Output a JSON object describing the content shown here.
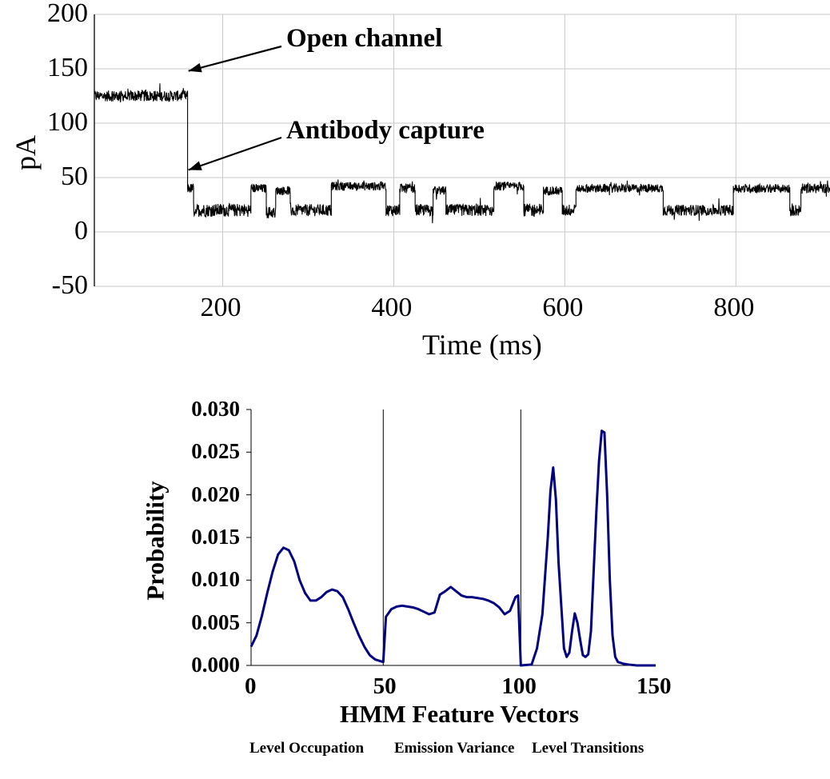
{
  "chart_data": [
    {
      "type": "line",
      "title": "",
      "xlabel": "Time (ms)",
      "ylabel": "pA",
      "xlim": [
        50,
        910
      ],
      "ylim": [
        -50,
        200
      ],
      "x_ticks": [
        200,
        400,
        600,
        800
      ],
      "y_ticks": [
        -50,
        0,
        50,
        100,
        150,
        200
      ],
      "x_tick_labels": [
        "200",
        "400",
        "600",
        "800"
      ],
      "y_tick_labels": [
        "-50",
        "0",
        "50",
        "100",
        "150",
        "200"
      ],
      "grid": true,
      "line_color": "#000000",
      "annotations": [
        {
          "text": "Open channel",
          "arrow_to": {
            "x": 160,
            "y": 148
          }
        },
        {
          "text": "Antibody capture",
          "arrow_to": {
            "x": 160,
            "y": 57
          }
        }
      ],
      "series": [
        {
          "segments": [
            {
              "x0": 50,
              "x1": 159,
              "level": 125,
              "noise": 10
            },
            {
              "x0": 159,
              "x1": 166,
              "level": 40,
              "noise": 9
            },
            {
              "x0": 166,
              "x1": 233,
              "level": 20,
              "noise": 12
            },
            {
              "x0": 233,
              "x1": 251,
              "level": 40,
              "noise": 8
            },
            {
              "x0": 251,
              "x1": 262,
              "level": 18,
              "noise": 11
            },
            {
              "x0": 262,
              "x1": 279,
              "level": 38,
              "noise": 8
            },
            {
              "x0": 279,
              "x1": 327,
              "level": 20,
              "noise": 11
            },
            {
              "x0": 327,
              "x1": 391,
              "level": 42,
              "noise": 8
            },
            {
              "x0": 391,
              "x1": 407,
              "level": 20,
              "noise": 11
            },
            {
              "x0": 407,
              "x1": 425,
              "level": 40,
              "noise": 9
            },
            {
              "x0": 425,
              "x1": 446,
              "level": 20,
              "noise": 11
            },
            {
              "x0": 446,
              "x1": 461,
              "level": 38,
              "noise": 8
            },
            {
              "x0": 461,
              "x1": 517,
              "level": 20,
              "noise": 11
            },
            {
              "x0": 517,
              "x1": 552,
              "level": 42,
              "noise": 8
            },
            {
              "x0": 552,
              "x1": 575,
              "level": 20,
              "noise": 12
            },
            {
              "x0": 575,
              "x1": 597,
              "level": 38,
              "noise": 8
            },
            {
              "x0": 597,
              "x1": 613,
              "level": 20,
              "noise": 11
            },
            {
              "x0": 613,
              "x1": 715,
              "level": 40,
              "noise": 8
            },
            {
              "x0": 715,
              "x1": 797,
              "level": 20,
              "noise": 10
            },
            {
              "x0": 797,
              "x1": 863,
              "level": 40,
              "noise": 8
            },
            {
              "x0": 863,
              "x1": 876,
              "level": 20,
              "noise": 11
            },
            {
              "x0": 876,
              "x1": 910,
              "level": 40,
              "noise": 9
            }
          ]
        }
      ]
    },
    {
      "type": "line",
      "title": "",
      "xlabel": "HMM Feature Vectors",
      "ylabel": "Probability",
      "xlim": [
        0,
        150
      ],
      "ylim": [
        0,
        0.03
      ],
      "x_ticks": [
        0,
        50,
        100,
        150
      ],
      "y_ticks": [
        0,
        0.005,
        0.01,
        0.015,
        0.02,
        0.025,
        0.03
      ],
      "x_tick_labels": [
        "0",
        "50",
        "100",
        "150"
      ],
      "y_tick_labels": [
        "0.000",
        "0.005",
        "0.010",
        "0.015",
        "0.020",
        "0.025",
        "0.030"
      ],
      "grid": false,
      "dividers": [
        49,
        100
      ],
      "segment_labels": [
        "Level Occupation",
        "Emission Variance",
        "Level Transitions"
      ],
      "line_color": "#000080",
      "series": [
        {
          "x": [
            0,
            2,
            4,
            6,
            8,
            10,
            12,
            14,
            16,
            18,
            20,
            22,
            24,
            26,
            28,
            30,
            32,
            34,
            36,
            38,
            40,
            42,
            44,
            46,
            48,
            49,
            50,
            52,
            54,
            56,
            58,
            60,
            62,
            64,
            66,
            68,
            70,
            72,
            74,
            76,
            78,
            80,
            82,
            84,
            86,
            88,
            90,
            92,
            94,
            96,
            98,
            99,
            100,
            104,
            106,
            108,
            110,
            111,
            112,
            113,
            114,
            116,
            117,
            118,
            119,
            120,
            121,
            122,
            123,
            124,
            125,
            126,
            128,
            129,
            130,
            131,
            132,
            133,
            134,
            135,
            136,
            138,
            140,
            143,
            147,
            150
          ],
          "y": [
            0.0022,
            0.0035,
            0.0058,
            0.0085,
            0.011,
            0.013,
            0.0138,
            0.0135,
            0.0122,
            0.01,
            0.0085,
            0.0076,
            0.0076,
            0.008,
            0.0086,
            0.0089,
            0.0087,
            0.008,
            0.0066,
            0.005,
            0.0035,
            0.0022,
            0.0012,
            0.0007,
            0.0005,
            0.0004,
            0.0057,
            0.0066,
            0.0069,
            0.007,
            0.0069,
            0.0068,
            0.0066,
            0.0063,
            0.006,
            0.0062,
            0.0083,
            0.0087,
            0.0092,
            0.0087,
            0.0082,
            0.008,
            0.008,
            0.0079,
            0.0078,
            0.0076,
            0.0073,
            0.0068,
            0.006,
            0.0064,
            0.008,
            0.0082,
            0.0,
            0.0001,
            0.002,
            0.006,
            0.015,
            0.0205,
            0.0232,
            0.0195,
            0.012,
            0.002,
            0.001,
            0.0015,
            0.004,
            0.0061,
            0.005,
            0.003,
            0.0012,
            0.001,
            0.0013,
            0.004,
            0.018,
            0.024,
            0.0275,
            0.0273,
            0.02,
            0.01,
            0.0035,
            0.001,
            0.0004,
            0.0002,
            0.0001,
            0.0,
            0.0,
            0.0
          ]
        }
      ]
    }
  ]
}
